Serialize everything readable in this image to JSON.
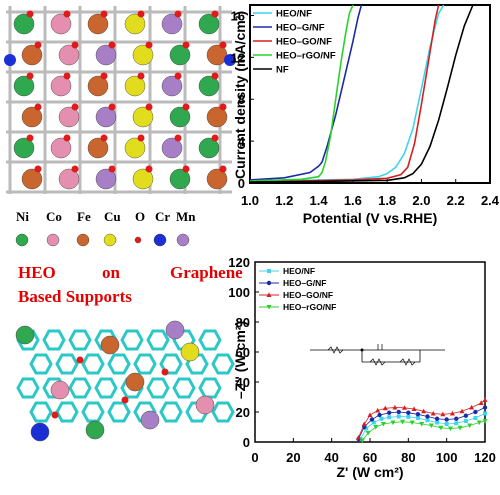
{
  "labels": {
    "heading_line1_words": [
      "HEO",
      "on",
      "Graphene"
    ],
    "heading_line2": "Based Supports",
    "element_legend": [
      {
        "symbol": "Ni",
        "color": "#2fa84f"
      },
      {
        "symbol": "Co",
        "color": "#e58fb0"
      },
      {
        "symbol": "Fe",
        "color": "#c9652f"
      },
      {
        "symbol": "Cu",
        "color": "#e2dc1e"
      },
      {
        "symbol": "O",
        "color": "#e11b1b"
      },
      {
        "symbol": "Cr",
        "color": "#1a2fd6"
      },
      {
        "symbol": "Mn",
        "color": "#a77fc7"
      }
    ]
  },
  "chart_data": [
    {
      "type": "line",
      "xlabel": "Potential (V vs.RHE)",
      "ylabel": "Current density (mA/cm²)",
      "xlim": [
        1.0,
        2.4
      ],
      "ylim": [
        0,
        17
      ],
      "xticks": [
        "1.0",
        "1.2",
        "1.4",
        "1.6",
        "1.8",
        "2.0",
        "2.2",
        "2.4"
      ],
      "yticks": [
        "0",
        "4",
        "8",
        "12",
        "16"
      ],
      "legend_position": "top-right",
      "series": [
        {
          "name": "HEO/NF",
          "color": "#3fd4ee",
          "x": [
            1.0,
            1.3,
            1.6,
            1.75,
            1.8,
            1.85,
            1.9,
            1.95,
            2.0,
            2.05,
            2.1,
            2.13
          ],
          "y": [
            0.2,
            0.25,
            0.35,
            0.6,
            0.9,
            1.5,
            2.8,
            5.2,
            9.0,
            13.0,
            16.2,
            17.0
          ]
        },
        {
          "name": "HEO–G/NF",
          "color": "#1c2aa8",
          "x": [
            1.0,
            1.2,
            1.35,
            1.4,
            1.42,
            1.45,
            1.5,
            1.55,
            1.6,
            1.63,
            1.65
          ],
          "y": [
            0.3,
            0.5,
            1.0,
            1.6,
            2.0,
            3.5,
            6.5,
            10.0,
            13.5,
            15.8,
            17.0
          ]
        },
        {
          "name": "HEO–GO/NF",
          "color": "#d62020",
          "x": [
            1.0,
            1.3,
            1.6,
            1.8,
            1.88,
            1.92,
            1.96,
            2.0,
            2.04,
            2.08,
            2.1
          ],
          "y": [
            0.15,
            0.2,
            0.3,
            0.45,
            0.8,
            1.5,
            3.8,
            7.5,
            11.5,
            15.5,
            17.0
          ]
        },
        {
          "name": "HEO–rGO/NF",
          "color": "#2cd22c",
          "x": [
            1.0,
            1.3,
            1.4,
            1.42,
            1.44,
            1.47,
            1.5,
            1.53,
            1.56,
            1.58,
            1.6
          ],
          "y": [
            0.2,
            0.35,
            0.6,
            1.0,
            2.0,
            4.5,
            8.0,
            11.5,
            14.5,
            16.2,
            17.0
          ]
        },
        {
          "name": "NF",
          "color": "#000000",
          "x": [
            1.0,
            1.4,
            1.8,
            1.9,
            1.95,
            2.0,
            2.05,
            2.1,
            2.15,
            2.2,
            2.25,
            2.3
          ],
          "y": [
            0.1,
            0.15,
            0.25,
            0.5,
            0.9,
            1.8,
            3.5,
            6.0,
            9.0,
            12.2,
            15.0,
            17.0
          ]
        }
      ]
    },
    {
      "type": "scatter",
      "xlabel": "Z' (W cm²)",
      "ylabel": "–Z'' (W cm²)",
      "xlim": [
        0,
        120
      ],
      "ylim": [
        0,
        120
      ],
      "xticks": [
        "0",
        "20",
        "40",
        "60",
        "80",
        "100",
        "120"
      ],
      "yticks": [
        "0",
        "20",
        "40",
        "60",
        "80",
        "100",
        "120"
      ],
      "legend_position": "top-left",
      "series": [
        {
          "name": "HEO/NF",
          "color": "#3fd4ee",
          "marker": "square",
          "x": [
            55,
            58,
            62,
            66,
            70,
            75,
            80,
            85,
            90,
            95,
            100,
            105,
            110,
            115,
            120
          ],
          "y": [
            2,
            9,
            13,
            15.5,
            16.5,
            17,
            16.8,
            16,
            14.5,
            13,
            12,
            12.5,
            14,
            16,
            19
          ]
        },
        {
          "name": "HEO–G/NF",
          "color": "#1c2aa8",
          "marker": "circle",
          "x": [
            54,
            57,
            61,
            65,
            70,
            75,
            80,
            85,
            90,
            95,
            100,
            105,
            110,
            115,
            120
          ],
          "y": [
            2,
            10,
            15,
            18,
            19.5,
            20,
            19.5,
            18.5,
            17,
            15.5,
            15,
            15.5,
            17.5,
            20,
            23
          ]
        },
        {
          "name": "HEO–GO/NF",
          "color": "#d62020",
          "marker": "triangle",
          "x": [
            54,
            57,
            60,
            64,
            68,
            73,
            78,
            83,
            88,
            93,
            98,
            103,
            108,
            113,
            118,
            120
          ],
          "y": [
            3,
            12,
            18,
            21,
            22.5,
            23,
            22.8,
            22,
            20.5,
            19,
            18.5,
            19,
            20.5,
            23,
            26,
            28
          ]
        },
        {
          "name": "HEO–rGO/NF",
          "color": "#2cd22c",
          "marker": "triangle-down",
          "x": [
            56,
            59,
            63,
            67,
            72,
            77,
            82,
            87,
            92,
            97,
            102,
            107,
            112,
            117,
            120
          ],
          "y": [
            1,
            6,
            10,
            12,
            13,
            13.5,
            13,
            12,
            11,
            9.5,
            9,
            9.5,
            11,
            13,
            14
          ]
        }
      ]
    }
  ]
}
